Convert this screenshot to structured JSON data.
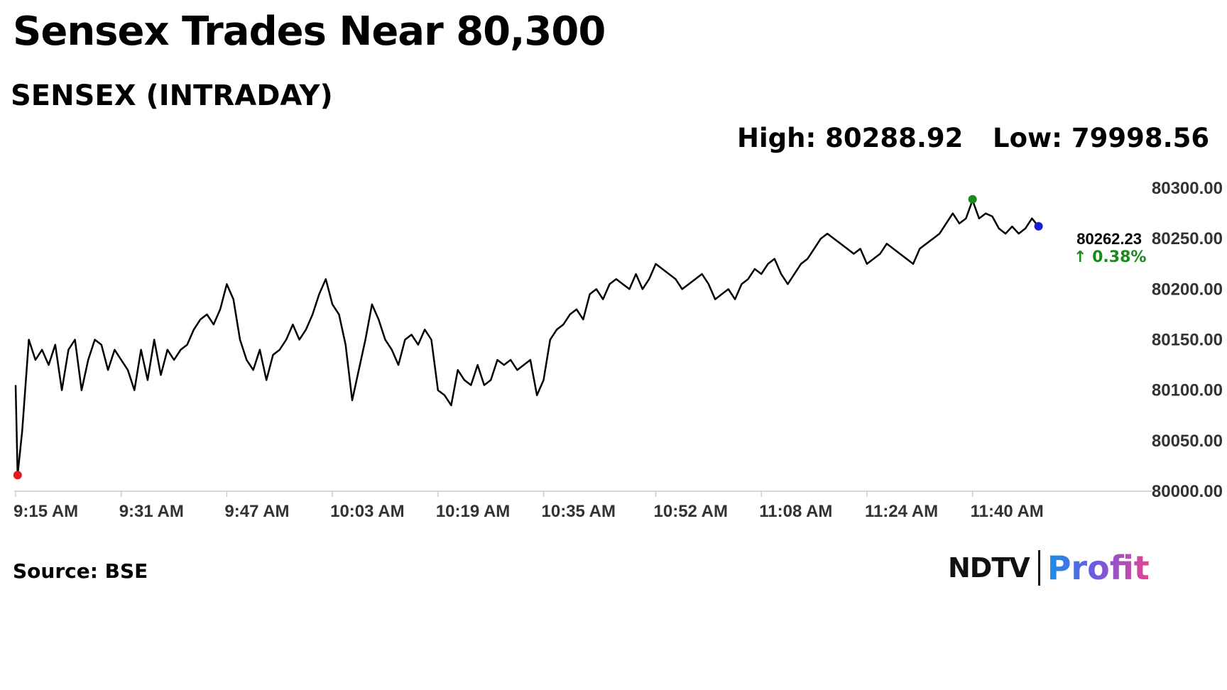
{
  "headline": "Sensex Trades Near 80,300",
  "subtitle": "SENSEX (INTRADAY)",
  "stats": {
    "high": "High: 80288.92",
    "low": "Low: 79998.56"
  },
  "last_value_label": "80262.23",
  "change_label": "↑ 0.38%",
  "source": "Source: BSE",
  "logo": {
    "ndtv": "NDTV",
    "profit": "Profit"
  },
  "colors": {
    "line": "#000000",
    "open_marker": "#e41a1c",
    "high_marker": "#1a8a1a",
    "last_marker": "#1c1cd0",
    "change": "#1a8a1a",
    "axis": "#cccccc"
  },
  "chart_data": {
    "type": "line",
    "title": "SENSEX (INTRADAY)",
    "xlabel": "",
    "ylabel": "",
    "ylim": [
      80000,
      80300
    ],
    "y_ticks": [
      "80300.00",
      "80250.00",
      "80200.00",
      "80150.00",
      "80100.00",
      "80050.00",
      "80000.00"
    ],
    "x_ticks": [
      "9:15 AM",
      "9:31 AM",
      "9:47 AM",
      "10:03 AM",
      "10:19 AM",
      "10:35 AM",
      "10:52 AM",
      "11:08 AM",
      "11:24 AM",
      "11:40 AM"
    ],
    "grid": false,
    "series": [
      {
        "x": [
          "9:15",
          "9:15",
          "9:16",
          "9:17",
          "9:18",
          "9:19",
          "9:20",
          "9:21",
          "9:22",
          "9:23",
          "9:24",
          "9:25",
          "9:26",
          "9:27",
          "9:28",
          "9:29",
          "9:30",
          "9:31",
          "9:32",
          "9:33",
          "9:34",
          "9:35",
          "9:36",
          "9:37",
          "9:38",
          "9:39",
          "9:40",
          "9:41",
          "9:42",
          "9:43",
          "9:44",
          "9:45",
          "9:46",
          "9:47",
          "9:48",
          "9:49",
          "9:50",
          "9:51",
          "9:52",
          "9:53",
          "9:54",
          "9:55",
          "9:56",
          "9:57",
          "9:58",
          "9:59",
          "10:00",
          "10:01",
          "10:02",
          "10:03",
          "10:04",
          "10:05",
          "10:06",
          "10:07",
          "10:08",
          "10:09",
          "10:10",
          "10:11",
          "10:12",
          "10:13",
          "10:14",
          "10:15",
          "10:16",
          "10:17",
          "10:18",
          "10:19",
          "10:20",
          "10:21",
          "10:22",
          "10:23",
          "10:24",
          "10:25",
          "10:26",
          "10:27",
          "10:28",
          "10:29",
          "10:30",
          "10:31",
          "10:32",
          "10:33",
          "10:34",
          "10:35",
          "10:36",
          "10:37",
          "10:38",
          "10:39",
          "10:40",
          "10:41",
          "10:42",
          "10:43",
          "10:44",
          "10:45",
          "10:46",
          "10:47",
          "10:48",
          "10:49",
          "10:50",
          "10:51",
          "10:52",
          "10:53",
          "10:54",
          "10:55",
          "10:56",
          "10:57",
          "10:58",
          "10:59",
          "11:00",
          "11:01",
          "11:02",
          "11:03",
          "11:04",
          "11:05",
          "11:06",
          "11:07",
          "11:08",
          "11:09",
          "11:10",
          "11:11",
          "11:12",
          "11:13",
          "11:14",
          "11:15",
          "11:16",
          "11:17",
          "11:18",
          "11:19",
          "11:20",
          "11:21",
          "11:22",
          "11:23",
          "11:24",
          "11:25",
          "11:26",
          "11:27",
          "11:28",
          "11:29",
          "11:30",
          "11:31",
          "11:32",
          "11:33",
          "11:34",
          "11:35",
          "11:36",
          "11:37",
          "11:38",
          "11:39",
          "11:40",
          "11:41",
          "11:42",
          "11:43",
          "11:44",
          "11:45",
          "11:46",
          "11:47",
          "11:48",
          "11:49",
          "11:50"
        ],
        "values": [
          80105,
          80016,
          80060,
          80150,
          80130,
          80140,
          80125,
          80145,
          80100,
          80140,
          80150,
          80100,
          80130,
          80150,
          80145,
          80120,
          80140,
          80130,
          80120,
          80100,
          80140,
          80110,
          80150,
          80115,
          80140,
          80130,
          80140,
          80145,
          80160,
          80170,
          80175,
          80165,
          80180,
          80205,
          80190,
          80150,
          80130,
          80120,
          80140,
          80110,
          80135,
          80140,
          80150,
          80165,
          80150,
          80160,
          80175,
          80195,
          80210,
          80185,
          80175,
          80145,
          80090,
          80120,
          80150,
          80185,
          80170,
          80150,
          80140,
          80125,
          80150,
          80155,
          80145,
          80160,
          80150,
          80100,
          80095,
          80085,
          80120,
          80110,
          80105,
          80125,
          80105,
          80110,
          80130,
          80125,
          80130,
          80120,
          80125,
          80130,
          80095,
          80110,
          80150,
          80160,
          80165,
          80175,
          80180,
          80170,
          80195,
          80200,
          80190,
          80205,
          80210,
          80205,
          80200,
          80215,
          80200,
          80210,
          80225,
          80220,
          80215,
          80210,
          80200,
          80205,
          80210,
          80215,
          80205,
          80190,
          80195,
          80200,
          80190,
          80205,
          80210,
          80220,
          80215,
          80225,
          80230,
          80215,
          80205,
          80215,
          80225,
          80230,
          80240,
          80250,
          80255,
          80250,
          80245,
          80240,
          80235,
          80240,
          80225,
          80230,
          80235,
          80245,
          80240,
          80235,
          80230,
          80225,
          80240,
          80245,
          80250,
          80255,
          80265,
          80275,
          80265,
          80270,
          80288,
          80270,
          80275,
          80272,
          80260,
          80255,
          80262,
          80255,
          80260,
          80270,
          80262
        ]
      }
    ],
    "markers": {
      "open": 80016,
      "high": 80288.92,
      "last": 80262.23
    }
  }
}
